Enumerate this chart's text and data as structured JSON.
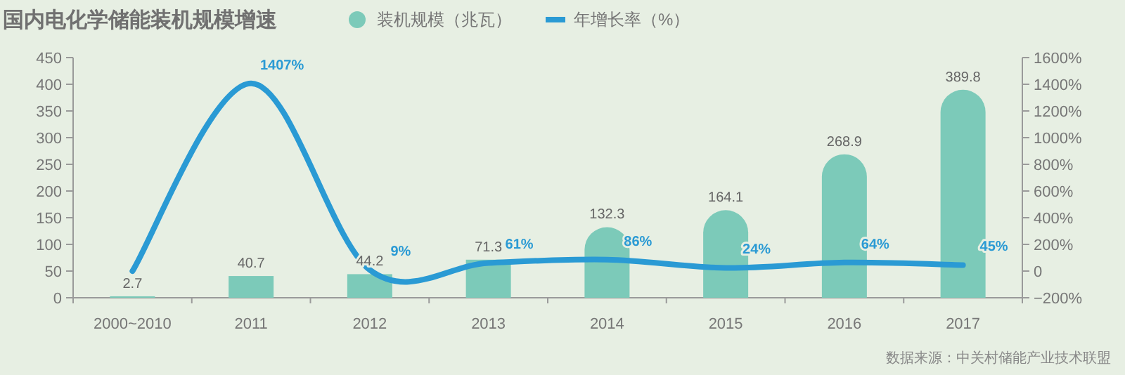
{
  "chart_data": {
    "type": "bar",
    "title": "国内电化学储能装机规模增速",
    "categories": [
      "2000~2010",
      "2011",
      "2012",
      "2013",
      "2014",
      "2015",
      "2016",
      "2017"
    ],
    "series": [
      {
        "name": "装机规模（兆瓦）",
        "color": "#7ccab9",
        "values": [
          2.7,
          40.7,
          44.2,
          71.3,
          132.3,
          164.1,
          268.9,
          389.8
        ],
        "value_labels": [
          "2.7",
          "40.7",
          "44.2",
          "71.3",
          "132.3",
          "164.1",
          "268.9",
          "389.8"
        ]
      },
      {
        "name": "年增长率（%）",
        "type": "line",
        "axis": "y2",
        "color": "#2a9ad4",
        "values": [
          0,
          1407,
          9,
          61,
          86,
          24,
          64,
          45
        ],
        "value_labels": [
          null,
          "1407%",
          "9%",
          "61%",
          "86%",
          "24%",
          "64%",
          "45%"
        ]
      }
    ],
    "ylim": [
      0,
      450
    ],
    "yticks": [
      0,
      50,
      100,
      150,
      200,
      250,
      300,
      350,
      400,
      450
    ],
    "y2lim": [
      -200,
      1600
    ],
    "y2ticks": [
      {
        "value": -200,
        "label": "−200%"
      },
      0,
      {
        "value": 200,
        "label": "200%"
      },
      {
        "value": 400,
        "label": "400%"
      },
      {
        "value": 600,
        "label": "600%"
      },
      {
        "value": 800,
        "label": "800%"
      },
      {
        "value": 1000,
        "label": "1000%"
      },
      {
        "value": 1200,
        "label": "1200%"
      },
      {
        "value": 1400,
        "label": "1400%"
      },
      {
        "value": 1600,
        "label": "1600%"
      }
    ],
    "legend": "top",
    "grid": false,
    "marker": "none",
    "line_style": "solid",
    "annotations": [
      "数据来源：中关村储能产业技术联盟"
    ]
  }
}
